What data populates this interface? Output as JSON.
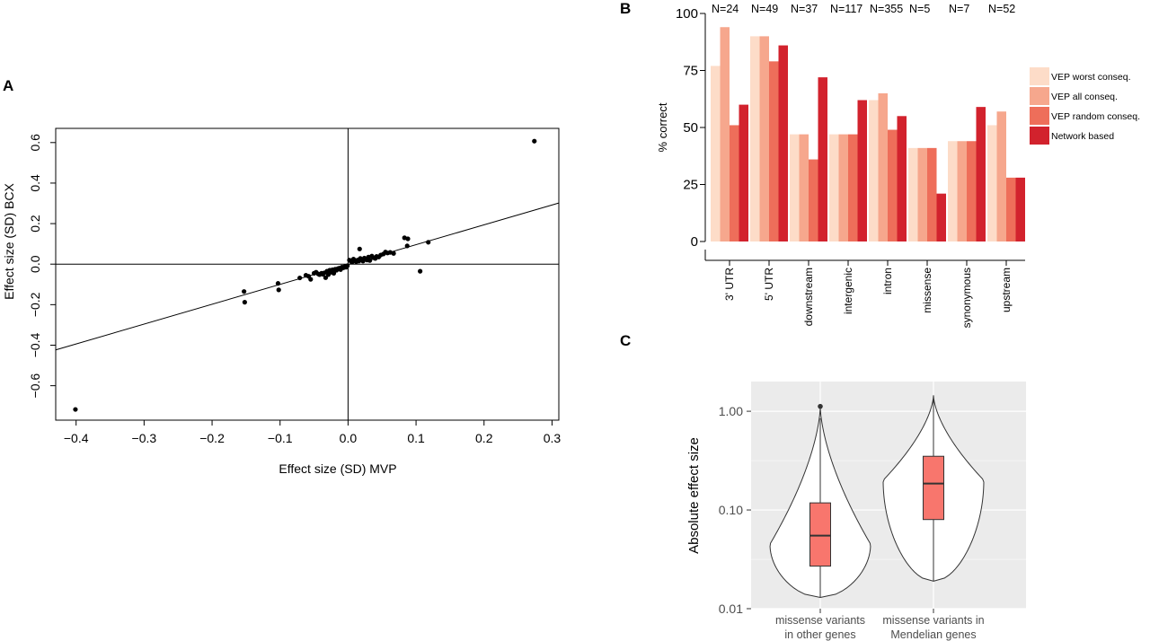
{
  "panels": {
    "A": {
      "letter": "A"
    },
    "B": {
      "letter": "B"
    },
    "C": {
      "letter": "C"
    }
  },
  "chart_data": [
    {
      "panel": "A",
      "type": "scatter",
      "xlabel": "Effect size (SD) MVP",
      "ylabel": "Effect size (SD) BCX",
      "xlim": [
        -0.43,
        0.31
      ],
      "ylim": [
        -0.77,
        0.67
      ],
      "xticks": [
        -0.4,
        -0.3,
        -0.2,
        -0.1,
        0.0,
        0.1,
        0.2,
        0.3
      ],
      "xtick_labels": [
        "−0.4",
        "−0.3",
        "−0.2",
        "−0.1",
        "0.0",
        "0.1",
        "0.2",
        "0.3"
      ],
      "yticks": [
        -0.6,
        -0.4,
        -0.2,
        0.0,
        0.2,
        0.4,
        0.6
      ],
      "ytick_labels": [
        "−0.6",
        "−0.4",
        "−0.2",
        "0.0",
        "0.2",
        "0.4",
        "0.6"
      ],
      "reference_lines": {
        "x": 0,
        "y": 0
      },
      "fit_line": {
        "slope": 0.98,
        "intercept": -0.002
      },
      "points": [
        [
          -0.401,
          -0.717
        ],
        [
          0.274,
          0.607
        ],
        [
          -0.153,
          -0.135
        ],
        [
          -0.152,
          -0.188
        ],
        [
          -0.103,
          -0.095
        ],
        [
          -0.102,
          -0.127
        ],
        [
          -0.071,
          -0.068
        ],
        [
          -0.062,
          -0.055
        ],
        [
          -0.058,
          -0.06
        ],
        [
          -0.055,
          -0.075
        ],
        [
          -0.05,
          -0.045
        ],
        [
          -0.047,
          -0.04
        ],
        [
          -0.044,
          -0.048
        ],
        [
          -0.042,
          -0.052
        ],
        [
          -0.039,
          -0.045
        ],
        [
          -0.037,
          -0.05
        ],
        [
          -0.035,
          -0.043
        ],
        [
          -0.033,
          -0.067
        ],
        [
          -0.031,
          -0.035
        ],
        [
          -0.029,
          -0.052
        ],
        [
          -0.027,
          -0.03
        ],
        [
          -0.025,
          -0.04
        ],
        [
          -0.023,
          -0.028
        ],
        [
          -0.021,
          -0.045
        ],
        [
          -0.019,
          -0.025
        ],
        [
          -0.017,
          -0.03
        ],
        [
          -0.015,
          -0.022
        ],
        [
          -0.013,
          -0.02
        ],
        [
          -0.011,
          -0.027
        ],
        [
          -0.009,
          -0.015
        ],
        [
          -0.007,
          -0.018
        ],
        [
          -0.005,
          -0.012
        ],
        [
          -0.003,
          -0.015
        ],
        [
          -0.001,
          -0.008
        ],
        [
          0.002,
          0.02
        ],
        [
          0.004,
          0.015
        ],
        [
          0.006,
          0.01
        ],
        [
          0.008,
          0.025
        ],
        [
          0.01,
          0.018
        ],
        [
          0.012,
          0.012
        ],
        [
          0.014,
          0.02
        ],
        [
          0.016,
          0.015
        ],
        [
          0.018,
          0.028
        ],
        [
          0.02,
          0.022
        ],
        [
          0.022,
          0.015
        ],
        [
          0.024,
          0.03
        ],
        [
          0.026,
          0.025
        ],
        [
          0.028,
          0.02
        ],
        [
          0.03,
          0.035
        ],
        [
          0.032,
          0.018
        ],
        [
          0.035,
          0.04
        ],
        [
          0.037,
          0.032
        ],
        [
          0.04,
          0.028
        ],
        [
          0.042,
          0.038
        ],
        [
          0.045,
          0.035
        ],
        [
          0.048,
          0.045
        ],
        [
          0.052,
          0.05
        ],
        [
          0.055,
          0.06
        ],
        [
          0.058,
          0.055
        ],
        [
          0.062,
          0.058
        ],
        [
          0.067,
          0.053
        ],
        [
          0.017,
          0.075
        ],
        [
          0.083,
          0.13
        ],
        [
          0.088,
          0.125
        ],
        [
          0.087,
          0.09
        ],
        [
          0.106,
          -0.035
        ],
        [
          0.118,
          0.108
        ]
      ]
    },
    {
      "panel": "B",
      "type": "bar",
      "ylabel": "% correct",
      "ylim": [
        0,
        100
      ],
      "yticks": [
        0,
        25,
        50,
        75,
        100
      ],
      "categories": [
        "3' UTR",
        "5' UTR",
        "downstream",
        "intergenic",
        "intron",
        "missense",
        "synonymous",
        "upstream"
      ],
      "counts": [
        "N=24",
        "N=49",
        "N=37",
        "N=117",
        "N=355",
        "N=5",
        "N=7",
        "N=52"
      ],
      "series": [
        {
          "name": "VEP worst conseq.",
          "color": "#fddcc8",
          "values": [
            77,
            90,
            47,
            47,
            62,
            41,
            44,
            51
          ]
        },
        {
          "name": "VEP all conseq.",
          "color": "#f6a78d",
          "values": [
            94,
            90,
            47,
            47,
            65,
            41,
            44,
            57
          ]
        },
        {
          "name": "VEP random conseq.",
          "color": "#ee6e5a",
          "values": [
            51,
            79,
            36,
            47,
            49,
            41,
            44,
            28
          ]
        },
        {
          "name": "Network based",
          "color": "#d2222d",
          "values": [
            60,
            86,
            72,
            62,
            55,
            21,
            59,
            28
          ]
        }
      ],
      "legend_position": "right"
    },
    {
      "panel": "C",
      "type": "violin",
      "ylabel": "Absolute effect size",
      "scale": "log10",
      "ylim": [
        0.01,
        2.0
      ],
      "yticks": [
        0.01,
        0.1,
        1.0
      ],
      "ytick_labels": [
        "0.01",
        "0.10",
        "1.00"
      ],
      "grid": true,
      "background": "#ebebeb",
      "box_color": "#f8766d",
      "groups": [
        {
          "label": [
            "missense variants",
            "in other genes"
          ],
          "min": 0.013,
          "q1": 0.027,
          "median": 0.055,
          "q3": 0.118,
          "max": 0.85,
          "outliers": [
            1.12
          ],
          "density_peak": 0.045
        },
        {
          "label": [
            "missense variants in",
            "Mendelian genes"
          ],
          "min": 0.019,
          "q1": 0.08,
          "median": 0.185,
          "q3": 0.35,
          "max": 1.45,
          "outliers": [],
          "density_peak": 0.2
        }
      ]
    }
  ]
}
